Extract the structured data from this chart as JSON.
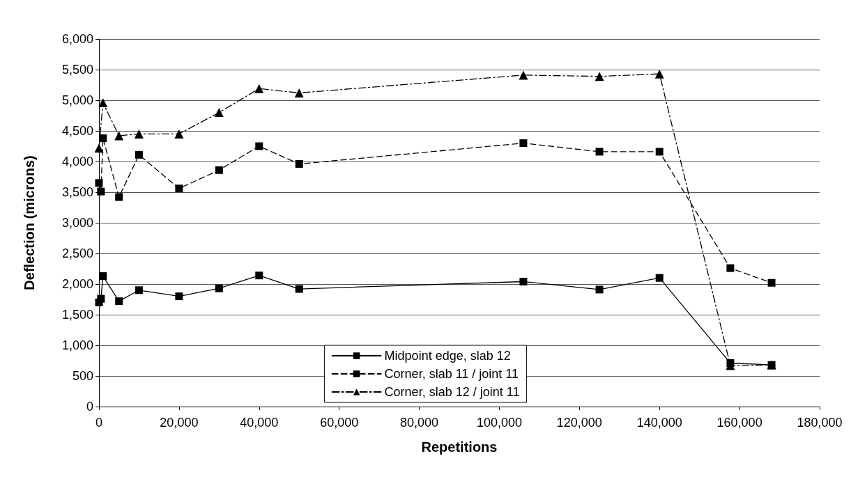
{
  "chart_data": {
    "type": "line",
    "xlabel": "Repetitions",
    "ylabel": "Deflection (microns)",
    "xlim": [
      0,
      180000
    ],
    "xticks": [
      0,
      {
        "value": 20000,
        "label": "20,000"
      },
      {
        "value": 40000,
        "label": "40,000"
      },
      {
        "value": 60000,
        "label": "60,000"
      },
      {
        "value": 80000,
        "label": "80,000"
      },
      {
        "value": 100000,
        "label": "100,000"
      },
      {
        "value": 120000,
        "label": "120,000"
      },
      {
        "value": 140000,
        "label": "140,000"
      },
      {
        "value": 160000,
        "label": "160,000"
      },
      {
        "value": 180000,
        "label": "180,000"
      }
    ],
    "ylim": [
      0,
      6000
    ],
    "yticks": [
      0,
      500,
      {
        "value": 1000,
        "label": "1,000"
      },
      {
        "value": 1500,
        "label": "1,500"
      },
      {
        "value": 2000,
        "label": "2,000"
      },
      {
        "value": 2500,
        "label": "2,500"
      },
      {
        "value": 3000,
        "label": "3,000"
      },
      {
        "value": 3500,
        "label": "3,500"
      },
      {
        "value": 4000,
        "label": "4,000"
      },
      {
        "value": 4500,
        "label": "4,500"
      },
      {
        "value": 5000,
        "label": "5,000"
      },
      {
        "value": 5500,
        "label": "5,500"
      },
      {
        "value": 6000,
        "label": "6,000"
      }
    ],
    "grid": "y",
    "legend": "bottom",
    "series": [
      {
        "name": "Midpoint edge, slab 12",
        "color": "#000000",
        "marker": "square",
        "line_style": "solid",
        "x": [
          0,
          500,
          1000,
          5000,
          10000,
          20000,
          30000,
          40000,
          50000,
          106000,
          125000,
          140000,
          157700,
          168000
        ],
        "values": [
          1700,
          1760,
          2130,
          1720,
          1900,
          1800,
          1930,
          2140,
          1920,
          2040,
          1910,
          2100,
          710,
          680
        ]
      },
      {
        "name": "Corner, slab 11 / joint 11",
        "color": "#000000",
        "marker": "square",
        "line_style": "dashed",
        "x": [
          0,
          500,
          1000,
          5000,
          10000,
          20000,
          30000,
          40000,
          50000,
          106000,
          125000,
          140000,
          157700,
          168000
        ],
        "values": [
          3650,
          3510,
          4380,
          3420,
          4110,
          3560,
          3860,
          4250,
          3960,
          4300,
          4160,
          4160,
          2260,
          2020
        ]
      },
      {
        "name": "Corner, slab 12 / joint 11",
        "color": "#000000",
        "marker": "triangle",
        "line_style": "dashdot",
        "x": [
          0,
          1000,
          5000,
          10000,
          20000,
          30000,
          40000,
          50000,
          106000,
          125000,
          140000,
          157700,
          168000
        ],
        "values": [
          4220,
          4960,
          4420,
          4450,
          4450,
          4800,
          5190,
          5120,
          5410,
          5390,
          5430,
          670,
          680
        ]
      }
    ]
  }
}
